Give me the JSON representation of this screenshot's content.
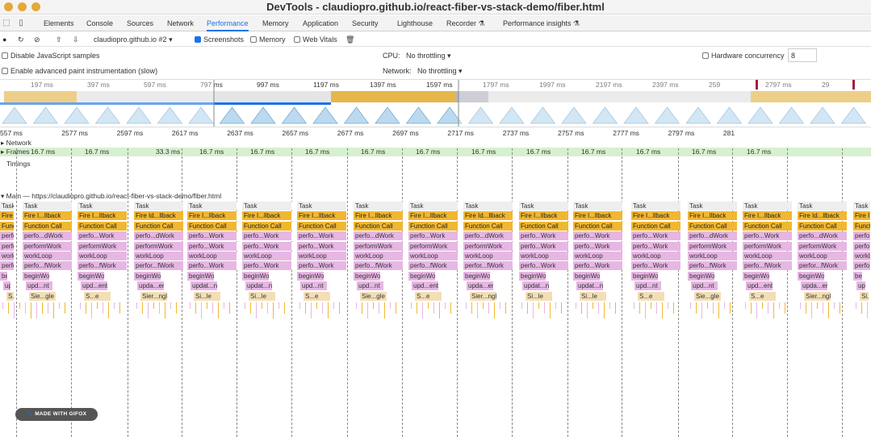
{
  "window": {
    "title": "DevTools - claudiopro.github.io/react-fiber-vs-stack-demo/fiber.html"
  },
  "tabs": [
    "Elements",
    "Console",
    "Sources",
    "Network",
    "Performance",
    "Memory",
    "Application",
    "Security",
    "Lighthouse",
    "Recorder ⚗",
    "Performance insights ⚗"
  ],
  "active_tab": "Performance",
  "toolbar": {
    "target": "claudiopro.github.io #2",
    "screenshots": "Screenshots",
    "memory": "Memory",
    "web_vitals": "Web Vitals"
  },
  "options": {
    "disable_js_samples": "Disable JavaScript samples",
    "advanced_paint": "Enable advanced paint instrumentation (slow)",
    "cpu_label": "CPU:",
    "cpu_value": "No throttling",
    "network_label": "Network:",
    "network_value": "No throttling",
    "hw_label": "Hardware concurrency",
    "hw_value": "8"
  },
  "overview_ruler": [
    "197 ms",
    "397 ms",
    "597 ms",
    "797 ms",
    "997 ms",
    "1197 ms",
    "1397 ms",
    "1597 ms",
    "1797 ms",
    "1997 ms",
    "2197 ms",
    "2397 ms",
    "259",
    "2797 ms",
    "29"
  ],
  "detail_ruler": [
    "557 ms",
    "2577 ms",
    "2597 ms",
    "2617 ms",
    "2637 ms",
    "2657 ms",
    "2677 ms",
    "2697 ms",
    "2717 ms",
    "2737 ms",
    "2757 ms",
    "2777 ms",
    "2797 ms",
    "281"
  ],
  "tracks": {
    "network": "Network",
    "frames": "Frames",
    "timings": "Timings",
    "main": "Main — https://claudiopro.github.io/react-fiber-vs-stack-demo/fiber.html"
  },
  "frames": [
    "16.7 ms",
    "16.7 ms",
    "33.3 ms",
    "16.7 ms",
    "16.7 ms",
    "16.7 ms",
    "16.7 ms",
    "16.7 ms",
    "16.7 ms",
    "16.7 ms",
    "16.7 ms",
    "16.7 ms",
    "16.7 ms",
    "16.7 ms"
  ],
  "flame_columns": [
    {
      "rows": [
        "Task",
        "Fire I...llback",
        "Function Call",
        "perfo...Work",
        "perfo...Work",
        "workLoop",
        "perfo...Work",
        "beginWork",
        "upd...nt",
        "S...e"
      ]
    },
    {
      "rows": [
        "Task",
        "Fire I...llback",
        "Function Call",
        "perfo...dWork",
        "performWork",
        "workLoop",
        "perfo...fWork",
        "beginWork",
        "upd...nt",
        "Sie...gle"
      ]
    },
    {
      "rows": [
        "Task",
        "Fire I...llback",
        "Function Call",
        "perfo...Work",
        "performWork",
        "workLoop",
        "perfo...fWork",
        "beginWork",
        "upd...ent",
        "S...e"
      ]
    },
    {
      "rows": [
        "Task",
        "Fire Id...llback",
        "Function Call",
        "perfo...dWork",
        "performWork",
        "workLoop",
        "perfor...fWork",
        "beginWork",
        "upda...ent",
        "Sier...ngle"
      ]
    },
    {
      "rows": [
        "Task",
        "Fire I...llback",
        "Function Call",
        "perfo...Work",
        "perfo...Work",
        "workLoop",
        "perfo...Work",
        "beginWork",
        "updat...nent",
        "Si...le"
      ]
    },
    {
      "rows": [
        "Task",
        "Fire I...llback",
        "Function Call",
        "perfo...Work",
        "perfo...Work",
        "workLoop",
        "perfo...Work",
        "beginWork",
        "updat...nent",
        "Si...le"
      ]
    }
  ],
  "watermark": "MADE WITH GIFOX"
}
